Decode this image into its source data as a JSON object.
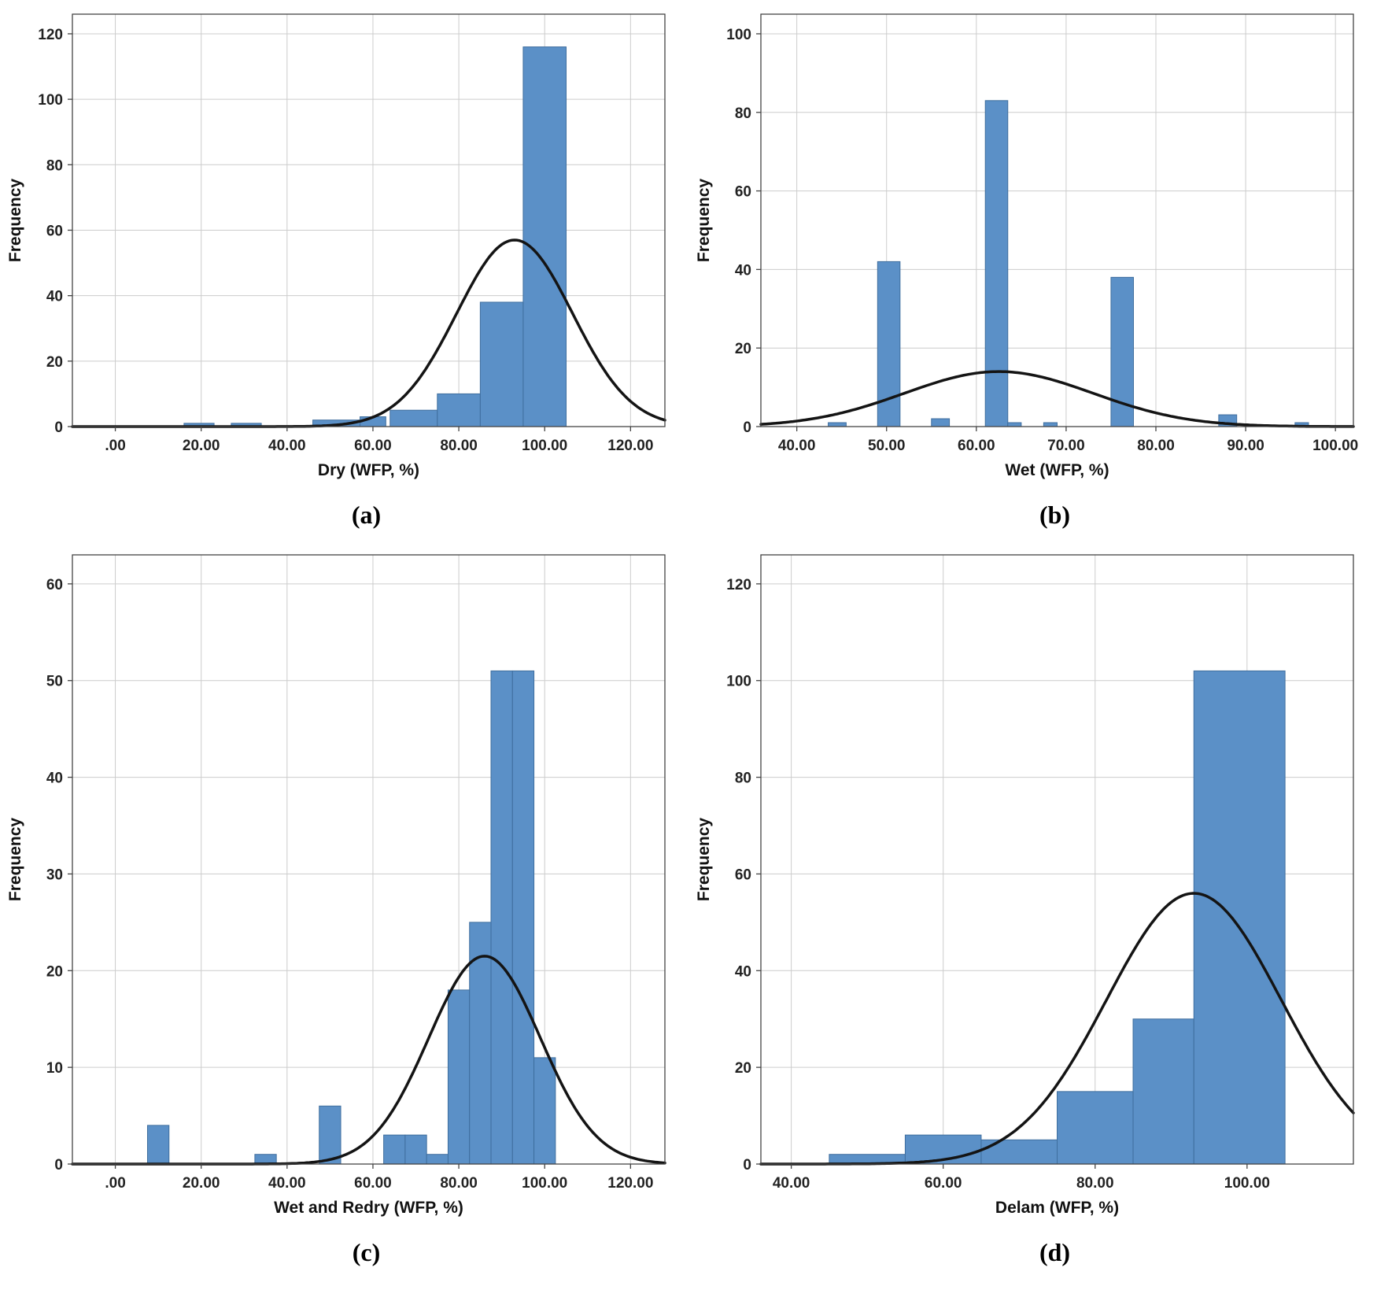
{
  "style": {
    "bar_fill": "#5b90c7",
    "bar_edge": "#3f6e9e",
    "curve_color": "#141414",
    "grid_color": "#cccccc",
    "frame_color": "#444444",
    "background": "#ffffff"
  },
  "chart_data": [
    {
      "type": "bar",
      "subtype": "histogram-with-normal-curve",
      "panel_label": "(a)",
      "xlabel": "Dry (WFP, %)",
      "ylabel": "Frequency",
      "xlim": [
        -10,
        128
      ],
      "ylim": [
        0,
        126
      ],
      "xticks": [
        0,
        20,
        40,
        60,
        80,
        100,
        120
      ],
      "xtick_labels": [
        ".00",
        "20.00",
        "40.00",
        "60.00",
        "80.00",
        "100.00",
        "120.00"
      ],
      "yticks": [
        0,
        20,
        40,
        60,
        80,
        100,
        120
      ],
      "grid": true,
      "legend": "none",
      "bins": [
        {
          "x0": 16,
          "x1": 23,
          "count": 1
        },
        {
          "x0": 27,
          "x1": 34,
          "count": 1
        },
        {
          "x0": 46,
          "x1": 57,
          "count": 2
        },
        {
          "x0": 57,
          "x1": 63,
          "count": 3
        },
        {
          "x0": 64,
          "x1": 75,
          "count": 5
        },
        {
          "x0": 75,
          "x1": 85,
          "count": 10
        },
        {
          "x0": 85,
          "x1": 95,
          "count": 38
        },
        {
          "x0": 95,
          "x1": 105,
          "count": 116
        }
      ],
      "curve": {
        "mean": 93,
        "sd": 13.5,
        "peak": 57
      }
    },
    {
      "type": "bar",
      "subtype": "histogram-with-normal-curve",
      "panel_label": "(b)",
      "xlabel": "Wet (WFP, %)",
      "ylabel": "Frequency",
      "xlim": [
        36,
        102
      ],
      "ylim": [
        0,
        105
      ],
      "xticks": [
        40,
        50,
        60,
        70,
        80,
        90,
        100
      ],
      "xtick_labels": [
        "40.00",
        "50.00",
        "60.00",
        "70.00",
        "80.00",
        "90.00",
        "100.00"
      ],
      "yticks": [
        0,
        20,
        40,
        60,
        80,
        100
      ],
      "grid": true,
      "legend": "none",
      "bins": [
        {
          "x0": 43.5,
          "x1": 45.5,
          "count": 1
        },
        {
          "x0": 49,
          "x1": 51.5,
          "count": 42
        },
        {
          "x0": 55,
          "x1": 57,
          "count": 2
        },
        {
          "x0": 61,
          "x1": 63.5,
          "count": 83
        },
        {
          "x0": 63.5,
          "x1": 65,
          "count": 1
        },
        {
          "x0": 67.5,
          "x1": 69,
          "count": 1
        },
        {
          "x0": 75,
          "x1": 77.5,
          "count": 38
        },
        {
          "x0": 87,
          "x1": 89,
          "count": 3
        },
        {
          "x0": 95.5,
          "x1": 97,
          "count": 1
        }
      ],
      "curve": {
        "mean": 62.5,
        "sd": 10.5,
        "peak": 14
      }
    },
    {
      "type": "bar",
      "subtype": "histogram-with-normal-curve",
      "panel_label": "(c)",
      "xlabel": "Wet and Redry (WFP, %)",
      "ylabel": "Frequency",
      "xlim": [
        -10,
        128
      ],
      "ylim": [
        0,
        63
      ],
      "xticks": [
        0,
        20,
        40,
        60,
        80,
        100,
        120
      ],
      "xtick_labels": [
        ".00",
        "20.00",
        "40.00",
        "60.00",
        "80.00",
        "100.00",
        "120.00"
      ],
      "yticks": [
        0,
        10,
        20,
        30,
        40,
        50,
        60
      ],
      "grid": true,
      "legend": "none",
      "bins": [
        {
          "x0": 7.5,
          "x1": 12.5,
          "count": 4
        },
        {
          "x0": 32.5,
          "x1": 37.5,
          "count": 1
        },
        {
          "x0": 47.5,
          "x1": 52.5,
          "count": 6
        },
        {
          "x0": 62.5,
          "x1": 67.5,
          "count": 3
        },
        {
          "x0": 67.5,
          "x1": 72.5,
          "count": 3
        },
        {
          "x0": 72.5,
          "x1": 77.5,
          "count": 1
        },
        {
          "x0": 77.5,
          "x1": 82.5,
          "count": 18
        },
        {
          "x0": 82.5,
          "x1": 87.5,
          "count": 25
        },
        {
          "x0": 87.5,
          "x1": 92.5,
          "count": 51
        },
        {
          "x0": 92.5,
          "x1": 97.5,
          "count": 51
        },
        {
          "x0": 97.5,
          "x1": 102.5,
          "count": 11
        }
      ],
      "curve": {
        "mean": 86,
        "sd": 13,
        "peak": 21.5
      }
    },
    {
      "type": "bar",
      "subtype": "histogram-with-normal-curve",
      "panel_label": "(d)",
      "xlabel": "Delam (WFP, %)",
      "ylabel": "Frequency",
      "xlim": [
        36,
        114
      ],
      "ylim": [
        0,
        126
      ],
      "xticks": [
        40,
        60,
        80,
        100
      ],
      "xtick_labels": [
        "40.00",
        "60.00",
        "80.00",
        "100.00"
      ],
      "yticks": [
        0,
        20,
        40,
        60,
        80,
        100,
        120
      ],
      "grid": true,
      "legend": "none",
      "bins": [
        {
          "x0": 45,
          "x1": 55,
          "count": 2
        },
        {
          "x0": 55,
          "x1": 65,
          "count": 6
        },
        {
          "x0": 65,
          "x1": 75,
          "count": 5
        },
        {
          "x0": 75,
          "x1": 85,
          "count": 15
        },
        {
          "x0": 85,
          "x1": 93,
          "count": 30
        },
        {
          "x0": 93,
          "x1": 105,
          "count": 102
        }
      ],
      "curve": {
        "mean": 93,
        "sd": 11.5,
        "peak": 56
      }
    }
  ]
}
